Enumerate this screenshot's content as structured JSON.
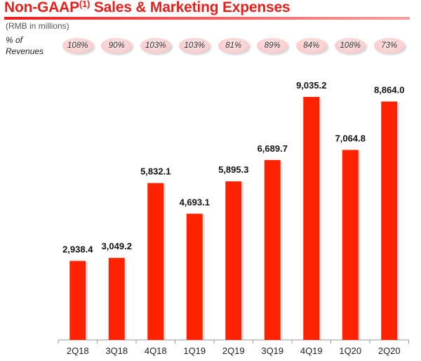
{
  "header": {
    "title_main": "Non-GAAP",
    "title_sup": "(1)",
    "title_rest": " Sales & Marketing Expenses",
    "subtitle": "(RMB in millions)",
    "pct_label_line1": "% of",
    "pct_label_line2": "Revenues"
  },
  "colors": {
    "bar": "#ff2200",
    "title": "#e8201c",
    "axis": "#999999"
  },
  "chart_data": {
    "type": "bar",
    "title": "Non-GAAP(1) Sales & Marketing Expenses",
    "subtitle": "(RMB in millions)",
    "xlabel": "",
    "ylabel": "",
    "categories": [
      "2Q18",
      "3Q18",
      "4Q18",
      "1Q19",
      "2Q19",
      "3Q19",
      "4Q19",
      "1Q20",
      "2Q20"
    ],
    "values": [
      2938.4,
      3049.2,
      5832.1,
      4693.1,
      5895.3,
      6689.7,
      9035.2,
      7064.8,
      8864.0
    ],
    "value_labels": [
      "2,938.4",
      "3,049.2",
      "5,832.1",
      "4,693.1",
      "5,895.3",
      "6,689.7",
      "9,035.2",
      "7,064.8",
      "8,864.0"
    ],
    "pct_of_revenues": [
      "108%",
      "90%",
      "103%",
      "103%",
      "81%",
      "89%",
      "84%",
      "108%",
      "73%"
    ],
    "ylim": [
      0,
      9035.2
    ],
    "grid": false,
    "legend": "none"
  }
}
